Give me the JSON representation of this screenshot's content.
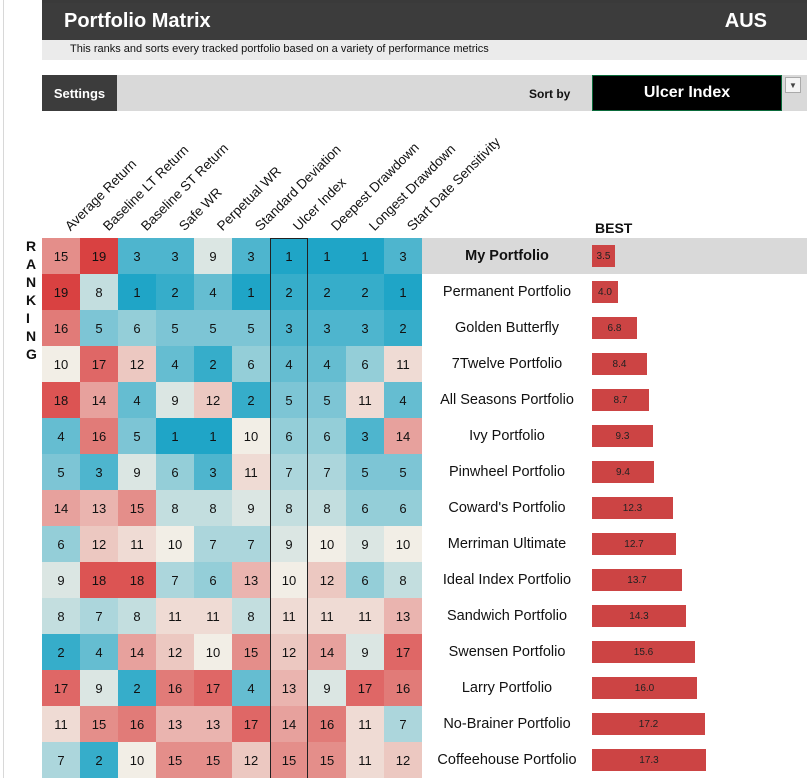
{
  "header": {
    "title": "Portfolio Matrix",
    "region": "AUS",
    "subtitle": "This ranks and sorts every tracked portfolio based on a variety of performance metrics"
  },
  "controls": {
    "settings_label": "Settings",
    "sortby_label": "Sort by",
    "sort_value": "Ulcer Index"
  },
  "columns": [
    "Average Return",
    "Baseline LT Return",
    "Baseline ST Return",
    "Safe WR",
    "Perpetual WR",
    "Standard Deviation",
    "Ulcer Index",
    "Deepest Drawdown",
    "Longest Drawdown",
    "Start Date Sensitivity"
  ],
  "ranking_letters": [
    "R",
    "A",
    "N",
    "K",
    "I",
    "N",
    "G"
  ],
  "best_label": "BEST",
  "rows": [
    {
      "name": "My Portfolio",
      "ranks": [
        15,
        19,
        3,
        3,
        9,
        3,
        1,
        1,
        1,
        3
      ],
      "value": "3.5",
      "highlight": true
    },
    {
      "name": "Permanent Portfolio",
      "ranks": [
        19,
        8,
        1,
        2,
        4,
        1,
        2,
        2,
        2,
        1
      ],
      "value": "4.0"
    },
    {
      "name": "Golden Butterfly",
      "ranks": [
        16,
        5,
        6,
        5,
        5,
        5,
        3,
        3,
        3,
        2
      ],
      "value": "6.8"
    },
    {
      "name": "7Twelve Portfolio",
      "ranks": [
        10,
        17,
        12,
        4,
        2,
        6,
        4,
        4,
        6,
        11
      ],
      "value": "8.4"
    },
    {
      "name": "All Seasons Portfolio",
      "ranks": [
        18,
        14,
        4,
        9,
        12,
        2,
        5,
        5,
        11,
        4
      ],
      "value": "8.7"
    },
    {
      "name": "Ivy Portfolio",
      "ranks": [
        4,
        16,
        5,
        1,
        1,
        10,
        6,
        6,
        3,
        14
      ],
      "value": "9.3"
    },
    {
      "name": "Pinwheel Portfolio",
      "ranks": [
        5,
        3,
        9,
        6,
        3,
        11,
        7,
        7,
        5,
        5
      ],
      "value": "9.4"
    },
    {
      "name": "Coward's Portfolio",
      "ranks": [
        14,
        13,
        15,
        8,
        8,
        9,
        8,
        8,
        6,
        6
      ],
      "value": "12.3"
    },
    {
      "name": "Merriman Ultimate",
      "ranks": [
        6,
        12,
        11,
        10,
        7,
        7,
        9,
        10,
        9,
        10
      ],
      "value": "12.7"
    },
    {
      "name": "Ideal Index Portfolio",
      "ranks": [
        9,
        18,
        18,
        7,
        6,
        13,
        10,
        12,
        6,
        8
      ],
      "value": "13.7"
    },
    {
      "name": "Sandwich Portfolio",
      "ranks": [
        8,
        7,
        8,
        11,
        11,
        8,
        11,
        11,
        11,
        13
      ],
      "value": "14.3"
    },
    {
      "name": "Swensen Portfolio",
      "ranks": [
        2,
        4,
        14,
        12,
        10,
        15,
        12,
        14,
        9,
        17
      ],
      "value": "15.6"
    },
    {
      "name": "Larry Portfolio",
      "ranks": [
        17,
        9,
        2,
        16,
        17,
        4,
        13,
        9,
        17,
        16
      ],
      "value": "16.0"
    },
    {
      "name": "No-Brainer Portfolio",
      "ranks": [
        11,
        15,
        16,
        13,
        13,
        17,
        14,
        16,
        11,
        7
      ],
      "value": "17.2"
    },
    {
      "name": "Coffeehouse Portfolio",
      "ranks": [
        7,
        2,
        10,
        15,
        15,
        12,
        15,
        15,
        11,
        12
      ],
      "value": "17.3"
    }
  ],
  "colors": {
    "best": "#1fa5c7",
    "mid": "#f2eee6",
    "worst": "#d94141",
    "bar": "#cc4444",
    "header_bg": "#3c3c3c"
  }
}
